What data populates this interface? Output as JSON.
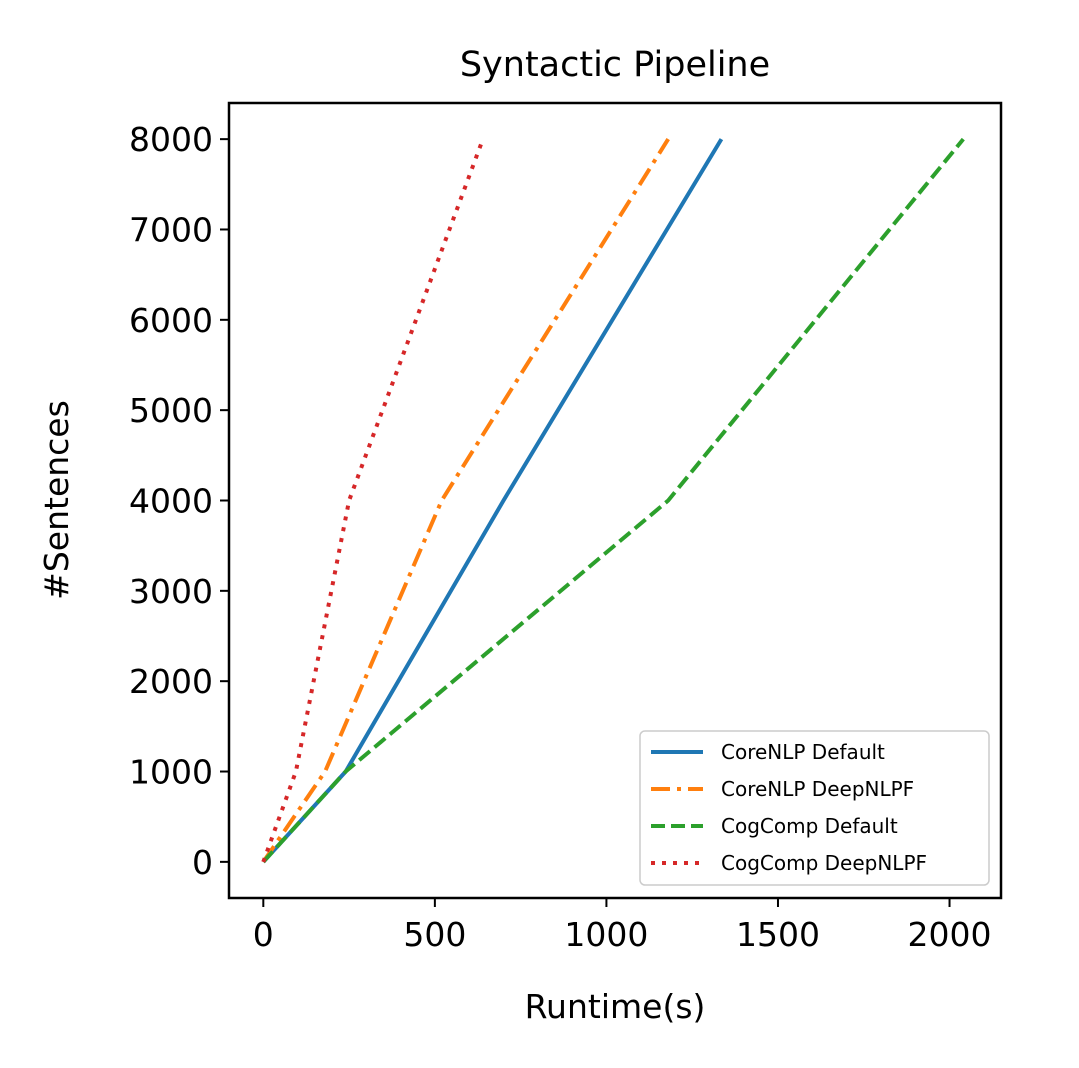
{
  "chart_data": {
    "type": "line",
    "title": "Syntactic Pipeline",
    "xlabel": "Runtime(s)",
    "ylabel": "#Sentences",
    "xlim": [
      -100,
      2150
    ],
    "ylim": [
      -400,
      8400
    ],
    "xticks": [
      0,
      500,
      1000,
      1500,
      2000
    ],
    "yticks": [
      0,
      1000,
      2000,
      3000,
      4000,
      5000,
      6000,
      7000,
      8000
    ],
    "grid": false,
    "legend_position": "lower-right",
    "series": [
      {
        "name": "CoreNLP Default",
        "color": "#1f77b4",
        "style": "solid",
        "points": [
          [
            0,
            0
          ],
          [
            240,
            1000
          ],
          [
            700,
            4000
          ],
          [
            1335,
            8000
          ]
        ]
      },
      {
        "name": "CoreNLP DeepNLPF",
        "color": "#ff7f0e",
        "style": "dashdot",
        "points": [
          [
            0,
            0
          ],
          [
            180,
            1000
          ],
          [
            520,
            4000
          ],
          [
            1180,
            8000
          ]
        ]
      },
      {
        "name": "CogComp Default",
        "color": "#2ca02c",
        "style": "dashed",
        "points": [
          [
            0,
            0
          ],
          [
            240,
            1000
          ],
          [
            1180,
            4000
          ],
          [
            2040,
            8000
          ]
        ]
      },
      {
        "name": "CogComp DeepNLPF",
        "color": "#d62728",
        "style": "dotted",
        "points": [
          [
            0,
            0
          ],
          [
            95,
            1000
          ],
          [
            250,
            4000
          ],
          [
            640,
            8000
          ]
        ]
      }
    ]
  }
}
